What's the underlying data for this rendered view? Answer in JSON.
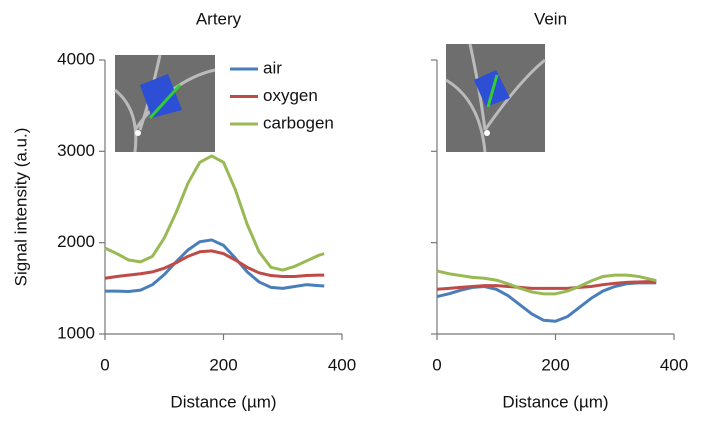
{
  "chart_data": [
    {
      "type": "line",
      "title": "Artery",
      "xlabel": "Distance (µm)",
      "ylabel": "Signal intensity (a.u.)",
      "x": [
        0,
        20,
        40,
        60,
        80,
        100,
        120,
        140,
        160,
        180,
        200,
        220,
        240,
        260,
        280,
        300,
        320,
        340,
        360,
        370
      ],
      "xlim": [
        0,
        400
      ],
      "xticks": [
        0,
        200,
        400
      ],
      "ylim": [
        1000,
        4000
      ],
      "yticks": [
        1000,
        2000,
        3000,
        4000
      ],
      "legend": "top",
      "series": [
        {
          "name": "air",
          "color": "#4a7ebb",
          "values": [
            1470,
            1470,
            1465,
            1480,
            1540,
            1650,
            1790,
            1920,
            2010,
            2030,
            1970,
            1830,
            1680,
            1570,
            1510,
            1500,
            1520,
            1540,
            1530,
            1525
          ]
        },
        {
          "name": "oxygen",
          "color": "#be4b48",
          "values": [
            1610,
            1630,
            1645,
            1660,
            1680,
            1720,
            1780,
            1850,
            1900,
            1910,
            1880,
            1810,
            1730,
            1670,
            1640,
            1630,
            1630,
            1640,
            1645,
            1645
          ]
        },
        {
          "name": "carbogen",
          "color": "#98b954",
          "values": [
            1940,
            1880,
            1810,
            1790,
            1850,
            2050,
            2330,
            2650,
            2880,
            2950,
            2880,
            2580,
            2200,
            1900,
            1730,
            1700,
            1740,
            1800,
            1860,
            1880
          ]
        }
      ]
    },
    {
      "type": "line",
      "title": "Vein",
      "xlabel": "Distance (µm)",
      "x": [
        0,
        20,
        40,
        60,
        80,
        100,
        120,
        140,
        160,
        180,
        200,
        220,
        240,
        260,
        280,
        300,
        320,
        340,
        360,
        370
      ],
      "xlim": [
        0,
        400
      ],
      "xticks": [
        0,
        200,
        400
      ],
      "sharey": true,
      "series": [
        {
          "color": "#4a7ebb",
          "values": [
            1410,
            1440,
            1480,
            1510,
            1520,
            1490,
            1420,
            1320,
            1220,
            1150,
            1140,
            1190,
            1290,
            1390,
            1470,
            1520,
            1550,
            1560,
            1560,
            1560
          ]
        },
        {
          "color": "#be4b48",
          "values": [
            1490,
            1500,
            1510,
            1520,
            1530,
            1530,
            1520,
            1510,
            1500,
            1500,
            1500,
            1500,
            1510,
            1520,
            1540,
            1555,
            1565,
            1570,
            1575,
            1575
          ]
        },
        {
          "color": "#98b954",
          "values": [
            1690,
            1660,
            1640,
            1620,
            1610,
            1590,
            1550,
            1500,
            1460,
            1440,
            1440,
            1470,
            1520,
            1580,
            1630,
            1645,
            1645,
            1630,
            1600,
            1585
          ]
        }
      ]
    }
  ]
}
